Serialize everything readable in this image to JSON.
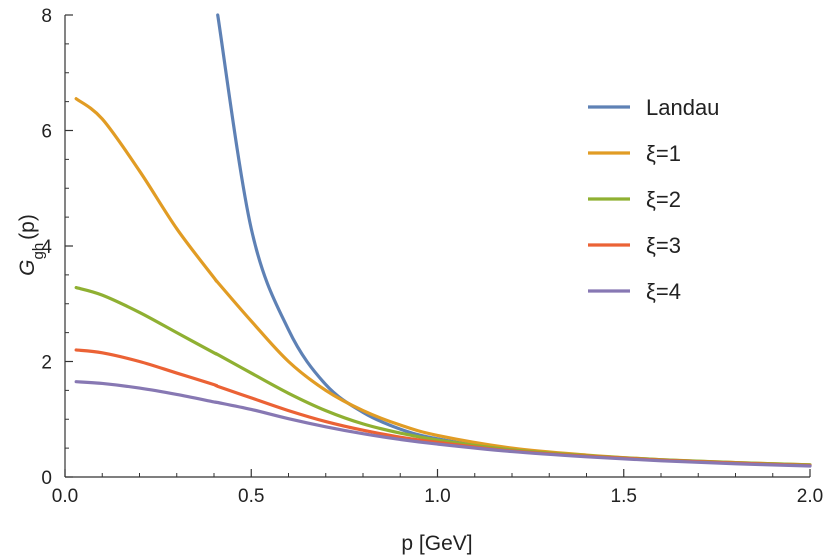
{
  "chart_data": {
    "type": "line",
    "title": "",
    "xlabel": "p [GeV]",
    "ylabel": "G_gh(p)",
    "ylabel_main": "G",
    "ylabel_sub": "gh",
    "ylabel_suffix": "(p)",
    "xlim": [
      0,
      2.0
    ],
    "ylim": [
      0,
      8
    ],
    "x_ticks": [
      0.0,
      0.5,
      1.0,
      1.5,
      2.0
    ],
    "x_tick_labels": [
      "0.0",
      "0.5",
      "1.0",
      "1.5",
      "2.0"
    ],
    "y_ticks": [
      0,
      2,
      4,
      6,
      8
    ],
    "y_tick_labels": [
      "0",
      "2",
      "4",
      "6",
      "8"
    ],
    "grid": false,
    "legend_position": "top-right",
    "x": [
      0.03,
      0.1,
      0.2,
      0.3,
      0.4,
      0.41,
      0.5,
      0.6,
      0.7,
      0.8,
      0.9,
      1.0,
      1.2,
      1.4,
      1.6,
      1.8,
      2.0
    ],
    "series": [
      {
        "name": "Landau",
        "color": "#5E81B5",
        "values": [
          null,
          null,
          null,
          null,
          null,
          8.0,
          4.3,
          2.55,
          1.6,
          1.12,
          0.83,
          0.66,
          0.46,
          0.36,
          0.29,
          0.24,
          0.2
        ]
      },
      {
        "name": "ξ=1",
        "color": "#E19C24",
        "values": [
          6.55,
          6.2,
          5.3,
          4.3,
          3.45,
          3.37,
          2.7,
          2.0,
          1.5,
          1.15,
          0.9,
          0.72,
          0.5,
          0.38,
          0.3,
          0.25,
          0.21
        ]
      },
      {
        "name": "ξ=2",
        "color": "#8FB032",
        "values": [
          3.28,
          3.15,
          2.85,
          2.5,
          2.15,
          2.12,
          1.8,
          1.45,
          1.15,
          0.92,
          0.76,
          0.64,
          0.47,
          0.37,
          0.3,
          0.25,
          0.21
        ]
      },
      {
        "name": "ξ=3",
        "color": "#EB6235",
        "values": [
          2.2,
          2.15,
          2.0,
          1.8,
          1.6,
          1.57,
          1.37,
          1.15,
          0.96,
          0.81,
          0.69,
          0.6,
          0.45,
          0.36,
          0.29,
          0.24,
          0.2
        ]
      },
      {
        "name": "ξ=4",
        "color": "#8778B3",
        "values": [
          1.65,
          1.62,
          1.54,
          1.43,
          1.3,
          1.29,
          1.17,
          1.01,
          0.87,
          0.75,
          0.65,
          0.57,
          0.44,
          0.35,
          0.28,
          0.23,
          0.19
        ]
      }
    ]
  }
}
